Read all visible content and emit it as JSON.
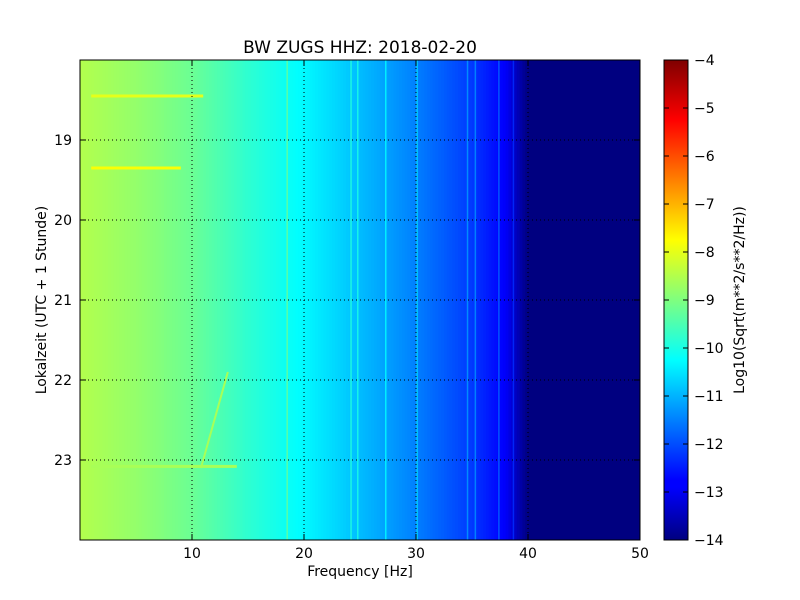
{
  "chart_data": {
    "type": "heatmap",
    "title": "BW ZUGS HHZ: 2018-02-20",
    "xlabel": "Frequency [Hz]",
    "ylabel": "Lokalzeit (UTC + 1 Stunde)",
    "xlim": [
      0,
      50
    ],
    "ylim": [
      18,
      24
    ],
    "y_inverted": true,
    "grid": true,
    "x_ticks": [
      10,
      20,
      30,
      40,
      50
    ],
    "y_ticks": [
      19,
      20,
      21,
      22,
      23
    ],
    "colormap": "jet",
    "colorbar": {
      "label": "Log10(Sqrt(m**2/s**2/Hz))",
      "range": [
        -14,
        -4
      ],
      "ticks": [
        -4,
        -5,
        -6,
        -7,
        -8,
        -9,
        -10,
        -11,
        -12,
        -13,
        -14
      ]
    },
    "spectrum_profile": {
      "frequency_hz": [
        0,
        5,
        10,
        15,
        20,
        25,
        30,
        35,
        38,
        40,
        45,
        50
      ],
      "level": [
        -8.5,
        -8.8,
        -9.2,
        -9.8,
        -10.3,
        -10.9,
        -11.5,
        -12.2,
        -12.8,
        -14,
        -14,
        -14
      ]
    },
    "narrowband_lines_hz": [
      18.5,
      24.2,
      24.8,
      27.3,
      30.1,
      34.6,
      35.3,
      37.4,
      38.7
    ],
    "bright_events": [
      {
        "time": 18.45,
        "freq_start": 1,
        "freq_end": 11,
        "level": -8.0
      },
      {
        "time": 19.35,
        "freq_start": 1,
        "freq_end": 9,
        "level": -7.8
      },
      {
        "time": 23.08,
        "freq_start": 1,
        "freq_end": 14,
        "level": -8.6
      }
    ],
    "drift_line": {
      "start": {
        "freq": 13.2,
        "time": 21.9
      },
      "end": {
        "freq": 10.8,
        "time": 23.1
      }
    }
  }
}
